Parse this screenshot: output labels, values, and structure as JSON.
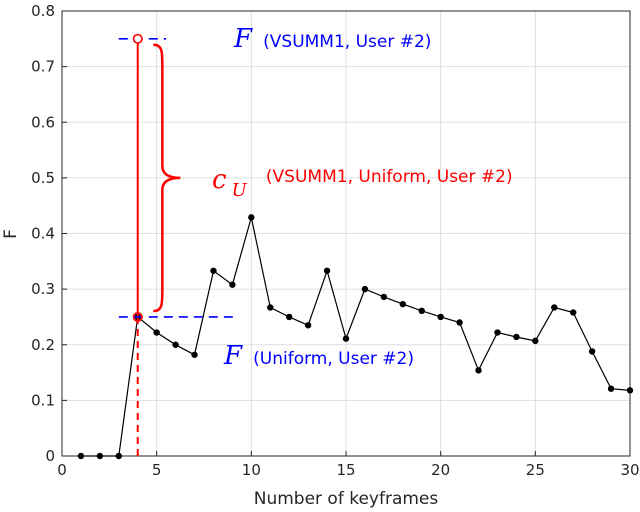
{
  "chart_data": {
    "type": "line",
    "xlabel": "Number of keyframes",
    "ylabel": "F",
    "xlim": [
      0,
      30
    ],
    "ylim": [
      0,
      0.8
    ],
    "xticks": [
      "0",
      "5",
      "10",
      "15",
      "20",
      "25",
      "30"
    ],
    "yticks": [
      "0",
      "0.1",
      "0.2",
      "0.3",
      "0.4",
      "0.5",
      "0.6",
      "0.7",
      "0.8"
    ],
    "grid": true,
    "series": [
      {
        "color": "#000000",
        "marker": "circle",
        "x": [
          1,
          2,
          3,
          4,
          5,
          6,
          7,
          8,
          9,
          10,
          11,
          12,
          13,
          14,
          15,
          16,
          17,
          18,
          19,
          20,
          21,
          22,
          23,
          24,
          25,
          26,
          27,
          28,
          29,
          30
        ],
        "y": [
          0,
          0,
          0,
          0.25,
          0.222,
          0.2,
          0.182,
          0.333,
          0.308,
          0.429,
          0.267,
          0.25,
          0.235,
          0.333,
          0.211,
          0.3,
          0.286,
          0.273,
          0.261,
          0.25,
          0.24,
          0.154,
          0.222,
          0.214,
          0.207,
          0.267,
          0.258,
          0.188,
          0.121,
          0.118
        ]
      }
    ],
    "annotations": {
      "vsumm_point": {
        "x": 4,
        "y": 0.75,
        "color": "#ff0000"
      },
      "uniform_point": {
        "x": 4,
        "y": 0.25,
        "color": "#ff0000"
      },
      "vsumm_line": {
        "y": 0.75,
        "x_from": 3,
        "x_to": 5.5,
        "color": "#0000ff"
      },
      "uniform_line": {
        "y": 0.25,
        "x_from": 3,
        "x_to": 9.2,
        "color": "#0000ff"
      },
      "top_label": {
        "symbol": "F",
        "text": "(VSUMM1, User #2)",
        "color": "#0000ff"
      },
      "bottom_label": {
        "symbol": "F",
        "text": "(Uniform, User #2)",
        "color": "#0000ff"
      },
      "cu_label": {
        "symbol": "c",
        "subscript": "U",
        "text": "(VSUMM1, Uniform, User #2)",
        "color": "#ff0000"
      }
    }
  }
}
